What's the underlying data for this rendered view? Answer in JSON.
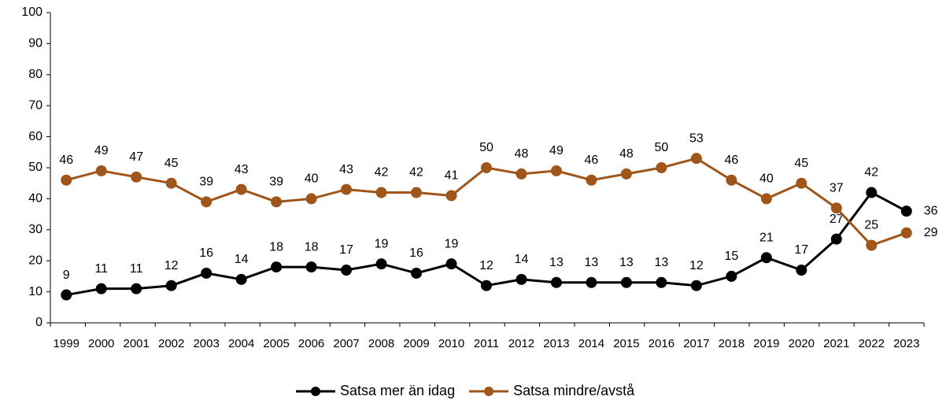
{
  "chart_data": {
    "type": "line",
    "categories": [
      "1999",
      "2000",
      "2001",
      "2002",
      "2003",
      "2004",
      "2005",
      "2006",
      "2007",
      "2008",
      "2009",
      "2010",
      "2011",
      "2012",
      "2013",
      "2014",
      "2015",
      "2016",
      "2017",
      "2018",
      "2019",
      "2020",
      "2021",
      "2022",
      "2023"
    ],
    "series": [
      {
        "name": "Satsa mer än idag",
        "color": "#000000",
        "values": [
          9,
          11,
          11,
          12,
          16,
          14,
          18,
          18,
          17,
          19,
          16,
          19,
          12,
          14,
          13,
          13,
          13,
          13,
          12,
          15,
          21,
          17,
          27,
          42,
          36
        ]
      },
      {
        "name": "Satsa mindre/avstå",
        "color": "#a0561a",
        "values": [
          46,
          49,
          47,
          45,
          39,
          43,
          39,
          40,
          43,
          42,
          42,
          41,
          50,
          48,
          49,
          46,
          48,
          50,
          53,
          46,
          40,
          45,
          37,
          25,
          29
        ]
      }
    ],
    "ylim": [
      0,
      100
    ],
    "yticks": [
      0,
      10,
      20,
      30,
      40,
      50,
      60,
      70,
      80,
      90,
      100
    ],
    "legend": "bottom"
  }
}
